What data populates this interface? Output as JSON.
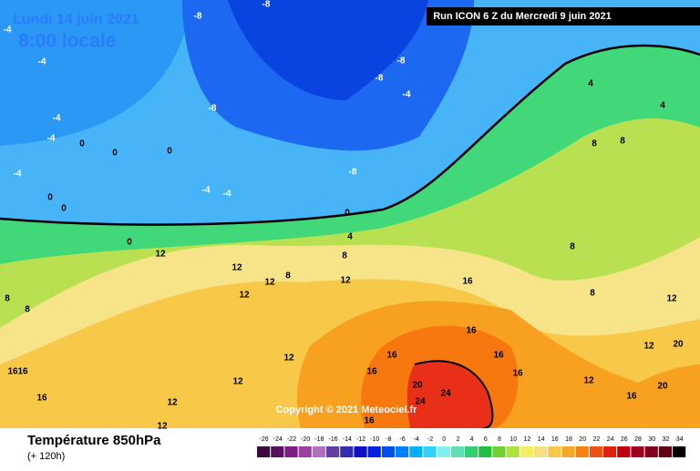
{
  "header": {
    "date": "Lundi 14 juin 2021",
    "time": "8:00 locale",
    "run": "Run ICON 6 Z du Mercredi 9 juin 2021"
  },
  "copyright": "Copyright © 2021 Meteociel.fr",
  "footer": {
    "title": "Température 850hPa",
    "subtitle": "(+ 120h)"
  },
  "legend": {
    "values": [
      -26,
      -24,
      -22,
      -20,
      -18,
      -16,
      -14,
      -12,
      -10,
      -8,
      -6,
      -4,
      -2,
      0,
      2,
      4,
      6,
      8,
      10,
      12,
      14,
      16,
      18,
      20,
      22,
      24,
      26,
      28,
      30,
      32,
      34
    ],
    "colors": [
      "#3b0a3b",
      "#5a1060",
      "#7a2080",
      "#9a40a0",
      "#b070c0",
      "#6040a0",
      "#3030b0",
      "#1010c8",
      "#0020e0",
      "#0050f0",
      "#0080ff",
      "#00b0ff",
      "#30d0ff",
      "#80f0f0",
      "#60e0b0",
      "#30d070",
      "#20c040",
      "#70d030",
      "#b0e040",
      "#f0f060",
      "#f8e080",
      "#f8c848",
      "#f8a820",
      "#f88010",
      "#f05010",
      "#e02010",
      "#c00010",
      "#a00020",
      "#800020",
      "#600010",
      "#000000"
    ]
  },
  "labels": [
    -8,
    -8,
    -4,
    -4,
    -8,
    -8,
    -4,
    -8,
    -4,
    -4,
    0,
    0,
    0,
    -4,
    -4,
    -4,
    -8,
    0,
    0,
    0,
    4,
    0,
    8,
    12,
    12,
    12,
    8,
    12,
    12,
    8,
    8,
    12,
    8,
    8,
    8,
    8,
    4,
    4,
    16,
    16,
    16,
    16,
    16,
    20,
    24,
    24,
    12,
    12,
    12,
    16,
    16,
    12,
    16,
    16,
    12,
    20,
    12,
    16,
    20,
    16
  ]
}
